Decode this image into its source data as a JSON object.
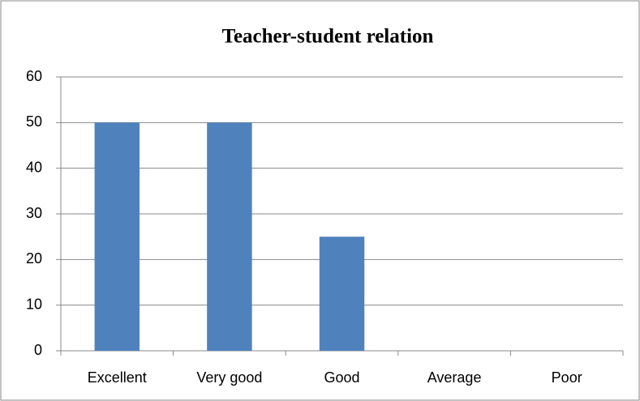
{
  "chart_data": {
    "type": "bar",
    "title": "Teacher-student relation",
    "categories": [
      "Excellent",
      "Very good",
      "Good",
      "Average",
      "Poor"
    ],
    "values": [
      50,
      50,
      25,
      0,
      0
    ],
    "color": "#4f81bd",
    "ylim": [
      0,
      60
    ],
    "yticks": [
      0,
      10,
      20,
      30,
      40,
      50,
      60
    ],
    "grid": true
  }
}
